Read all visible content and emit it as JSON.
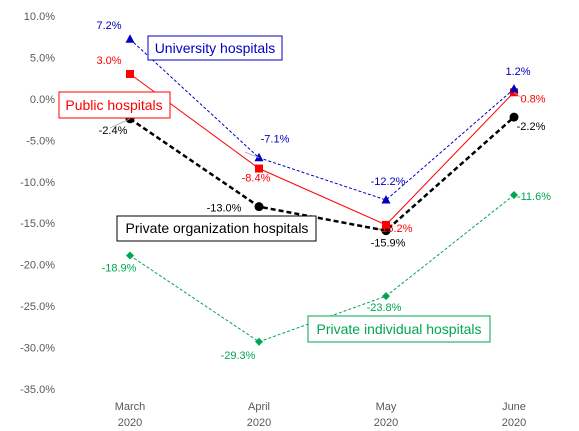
{
  "chart_data": {
    "type": "line",
    "title": "",
    "xlabel": "",
    "ylabel": "",
    "categories": [
      {
        "line1": "March",
        "line2": "2020"
      },
      {
        "line1": "April",
        "line2": "2020"
      },
      {
        "line1": "May",
        "line2": "2020"
      },
      {
        "line1": "June",
        "line2": "2020"
      }
    ],
    "ylim": [
      -35,
      10
    ],
    "ytick_step": 5,
    "ytick_labels": [
      "10.0%",
      "5.0%",
      "0.0%",
      "-5.0%",
      "-10.0%",
      "-15.0%",
      "-20.0%",
      "-25.0%",
      "-30.0%",
      "-35.0%"
    ],
    "grid": false,
    "series": [
      {
        "name": "University hospitals",
        "values": [
          7.2,
          -7.1,
          -12.2,
          1.2
        ],
        "labels": [
          "7.2%",
          "-7.1%",
          "-12.2%",
          "1.2%"
        ],
        "color": "#0000C0",
        "marker": "triangle",
        "line_style": "dashed"
      },
      {
        "name": "Public hospitals",
        "values": [
          3.0,
          -8.4,
          -15.2,
          0.8
        ],
        "labels": [
          "3.0%",
          "-8.4%",
          "-15.2%",
          "0.8%"
        ],
        "color": "#FF0000",
        "marker": "square",
        "line_style": "solid"
      },
      {
        "name": "Private organization hospitals",
        "values": [
          -2.4,
          -13.0,
          -15.9,
          -2.2
        ],
        "labels": [
          "-2.4%",
          "-13.0%",
          "-15.9%",
          "-2.2%"
        ],
        "color": "#000000",
        "marker": "circle",
        "line_style": "dashed"
      },
      {
        "name": "Private individual hospitals",
        "values": [
          -18.9,
          -29.3,
          -23.8,
          -11.6
        ],
        "labels": [
          "-18.9%",
          "-29.3%",
          "-23.8%",
          "-11.6%"
        ],
        "color": "#00A651",
        "marker": "diamond",
        "line_style": "dashed"
      }
    ]
  }
}
